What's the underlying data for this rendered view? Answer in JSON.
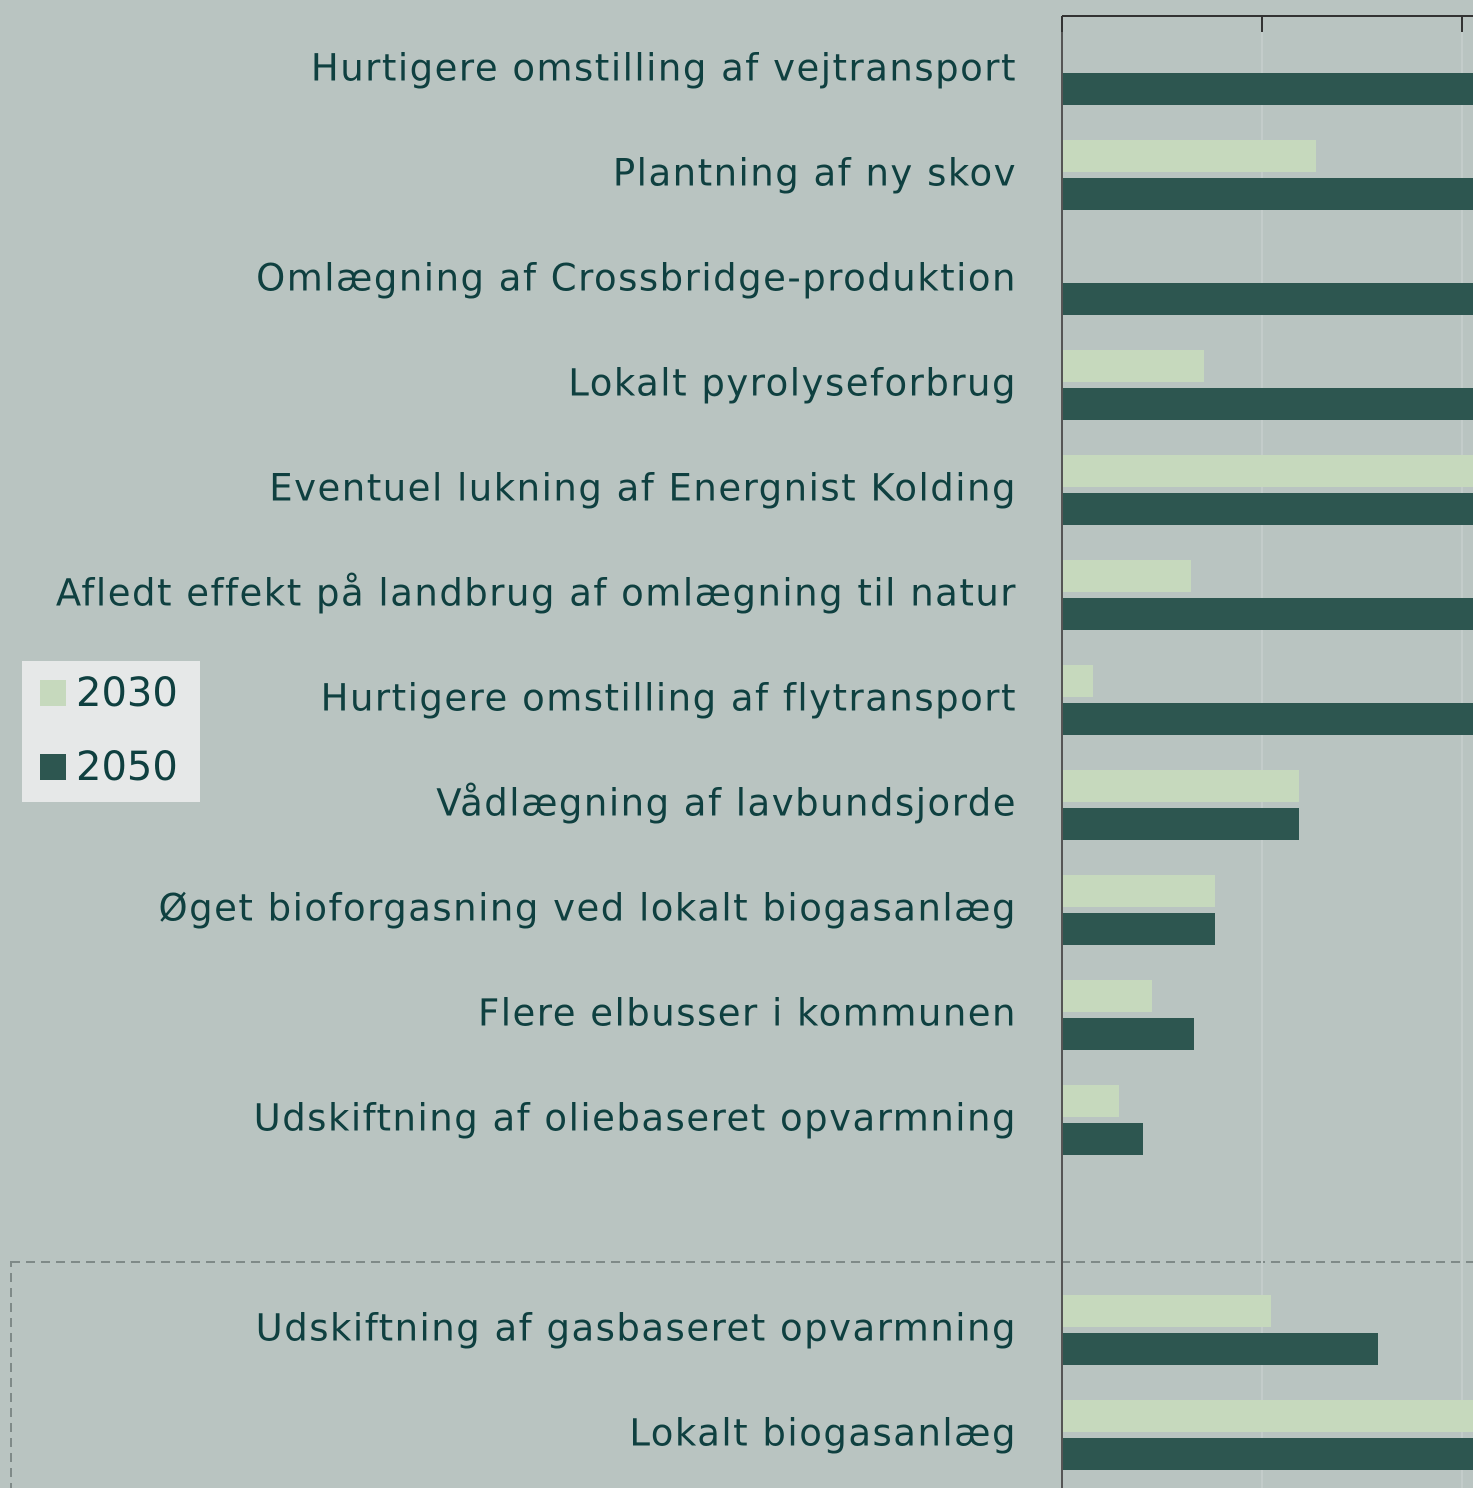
{
  "chart_data": {
    "type": "barh",
    "categories": [
      "Hurtigere omstilling af vejtransport",
      "Plantning af ny skov",
      "Omlægning af Crossbridge-produktion",
      "Lokalt pyrolyseforbrug",
      "Eventuel lukning af Energnist Kolding",
      "Afledt effekt på landbrug af omlægning til natur",
      "Hurtigere omstilling af flytransport",
      "Vådlægning af lavbundsjorde",
      "Øget bioforgasning ved lokalt biogasanlæg",
      "Flere elbusser i kommunen",
      "Udskiftning af oliebaseret opvarmning",
      null,
      "Udskiftning af gasbaseret opvarmning",
      "Lokalt biogasanlæg"
    ],
    "series": [
      {
        "name": "2030",
        "color": "#c6d9bd",
        "values": [
          null,
          1.27,
          null,
          0.71,
          2.1,
          0.645,
          0.155,
          1.185,
          0.765,
          0.45,
          0.285,
          null,
          1.045,
          2.1
        ]
      },
      {
        "name": "2050",
        "color": "#2d5650",
        "values": [
          2.1,
          2.1,
          2.1,
          2.1,
          2.1,
          2.1,
          2.1,
          1.185,
          0.765,
          0.66,
          0.405,
          null,
          1.58,
          2.1
        ]
      }
    ],
    "xlim": [
      0,
      2.055
    ],
    "xticks": [
      0,
      1,
      2
    ],
    "grid": true,
    "legend": "left"
  }
}
